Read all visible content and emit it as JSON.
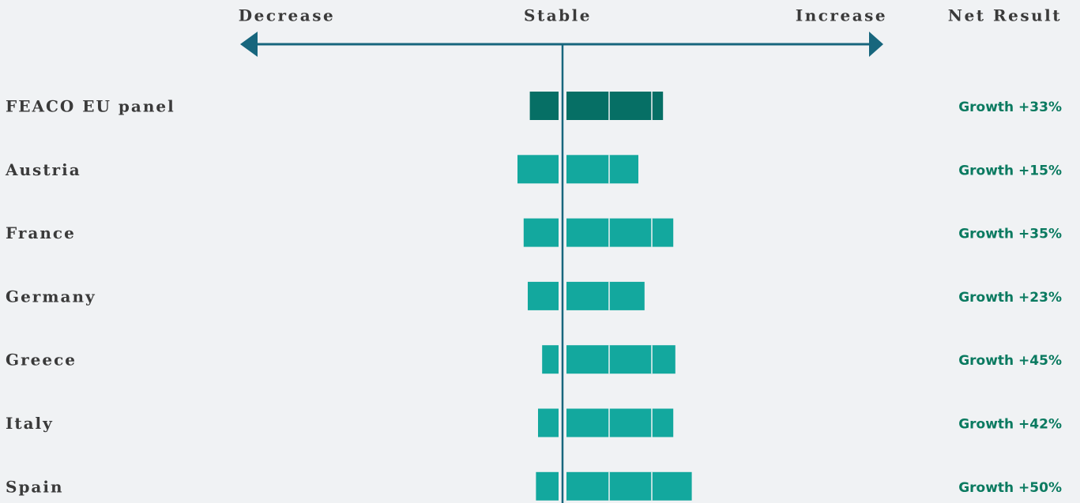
{
  "chart_data": {
    "type": "diverging_bar",
    "axis_labels": {
      "decrease": "Decrease",
      "stable": "Stable",
      "increase": "Increase"
    },
    "net_header": "Net Result",
    "categories": [
      "FEACO EU panel",
      "Austria",
      "France",
      "Germany",
      "Greece",
      "Italy",
      "Spain"
    ],
    "decrease": [
      14,
      20,
      17,
      15,
      8,
      10,
      11
    ],
    "increase": [
      47,
      35,
      52,
      38,
      53,
      52,
      61
    ],
    "net_labels": [
      "Growth +33%",
      "Growth +15%",
      "Growth +35%",
      "Growth +23%",
      "Growth +45%",
      "Growth +42%",
      "Growth +50%"
    ],
    "color": "#13a89e",
    "highlight_color": "#066f65",
    "highlight": 0,
    "axis_color": "#17667d",
    "net_color": "#0a7a60"
  }
}
